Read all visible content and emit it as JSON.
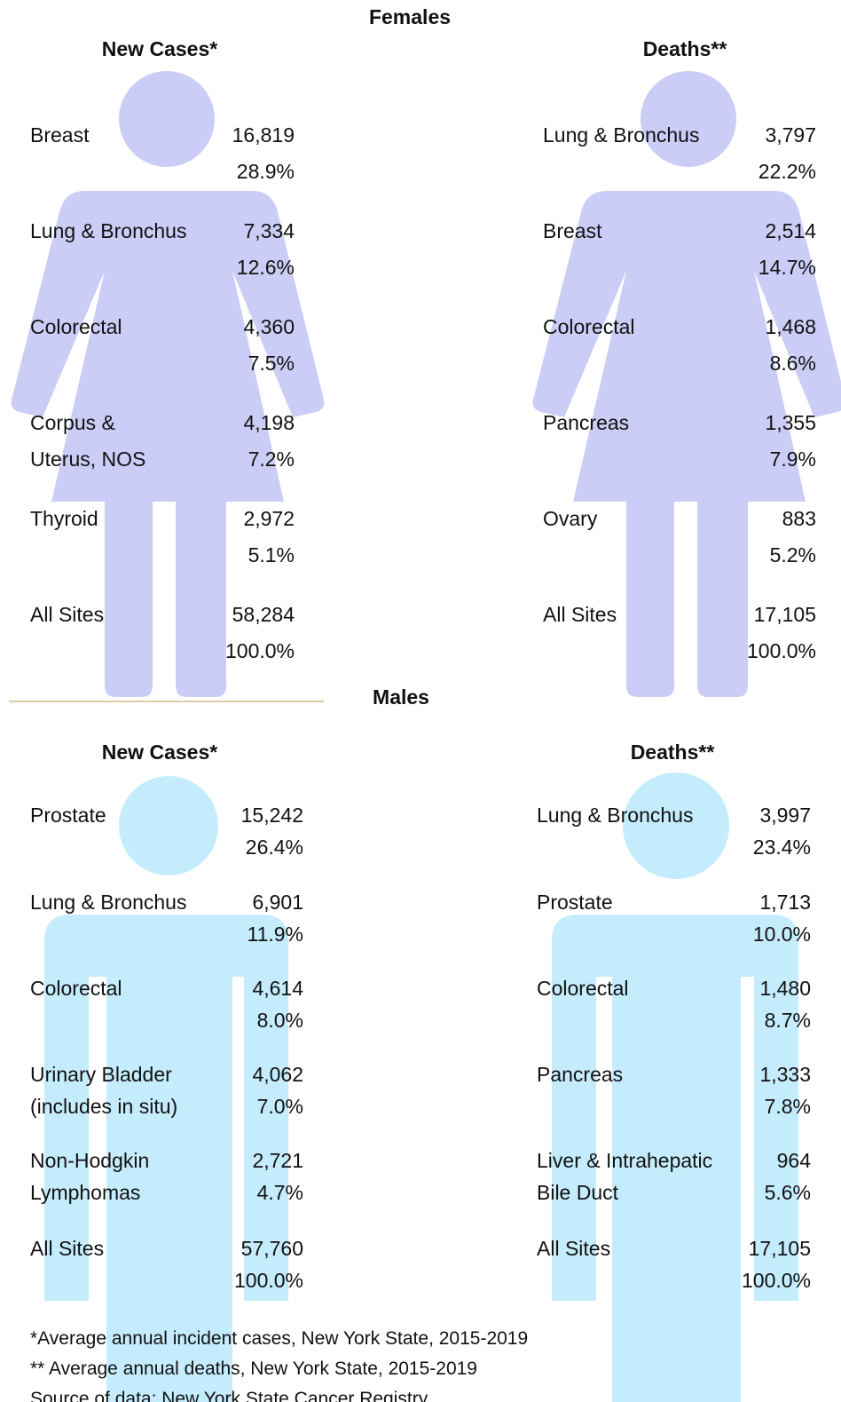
{
  "females": {
    "title": "Females",
    "new_cases": {
      "title": "New Cases*",
      "rows": [
        {
          "site": [
            "Breast"
          ],
          "count": "16,819",
          "percent": "28.9%"
        },
        {
          "site": [
            "Lung & Bronchus"
          ],
          "count": "7,334",
          "percent": "12.6%"
        },
        {
          "site": [
            "Colorectal"
          ],
          "count": "4,360",
          "percent": "7.5%"
        },
        {
          "site": [
            "Corpus &",
            "Uterus, NOS"
          ],
          "count": "4,198",
          "percent": "7.2%"
        },
        {
          "site": [
            "Thyroid"
          ],
          "count": "2,972",
          "percent": "5.1%"
        },
        {
          "site": [
            "All Sites"
          ],
          "count": "58,284",
          "percent": "100.0%"
        }
      ]
    },
    "deaths": {
      "title": "Deaths**",
      "rows": [
        {
          "site": [
            "Lung & Bronchus"
          ],
          "count": "3,797",
          "percent": "22.2%"
        },
        {
          "site": [
            "Breast"
          ],
          "count": "2,514",
          "percent": "14.7%"
        },
        {
          "site": [
            "Colorectal"
          ],
          "count": "1,468",
          "percent": "8.6%"
        },
        {
          "site": [
            "Pancreas"
          ],
          "count": "1,355",
          "percent": "7.9%"
        },
        {
          "site": [
            "Ovary"
          ],
          "count": "883",
          "percent": "5.2%"
        },
        {
          "site": [
            "All Sites"
          ],
          "count": "17,105",
          "percent": "100.0%"
        }
      ]
    }
  },
  "males": {
    "title": "Males",
    "new_cases": {
      "title": "New Cases*",
      "rows": [
        {
          "site": [
            "Prostate"
          ],
          "count": "15,242",
          "percent": "26.4%"
        },
        {
          "site": [
            "Lung & Bronchus"
          ],
          "count": "6,901",
          "percent": "11.9%"
        },
        {
          "site": [
            "Colorectal"
          ],
          "count": "4,614",
          "percent": "8.0%"
        },
        {
          "site": [
            "Urinary Bladder",
            "(includes in situ)"
          ],
          "count": "4,062",
          "percent": "7.0%"
        },
        {
          "site": [
            "Non-Hodgkin",
            "Lymphomas"
          ],
          "count": "2,721",
          "percent": "4.7%"
        },
        {
          "site": [
            "All Sites"
          ],
          "count": "57,760",
          "percent": "100.0%"
        }
      ]
    },
    "deaths": {
      "title": "Deaths**",
      "rows": [
        {
          "site": [
            "Lung & Bronchus"
          ],
          "count": "3,997",
          "percent": "23.4%"
        },
        {
          "site": [
            "Prostate"
          ],
          "count": "1,713",
          "percent": "10.0%"
        },
        {
          "site": [
            "Colorectal"
          ],
          "count": "1,480",
          "percent": "8.7%"
        },
        {
          "site": [
            "Pancreas"
          ],
          "count": "1,333",
          "percent": "7.8%"
        },
        {
          "site": [
            "Liver & Intrahepatic",
            "Bile Duct"
          ],
          "count": "964",
          "percent": "5.6%"
        },
        {
          "site": [
            "All Sites"
          ],
          "count": "17,105",
          "percent": "100.0%"
        }
      ]
    }
  },
  "footnotes": [
    "*Average annual incident cases, New York State, 2015-2019",
    "** Average annual deaths, New York State, 2015-2019",
    "Source of data: New York State Cancer Registry"
  ]
}
